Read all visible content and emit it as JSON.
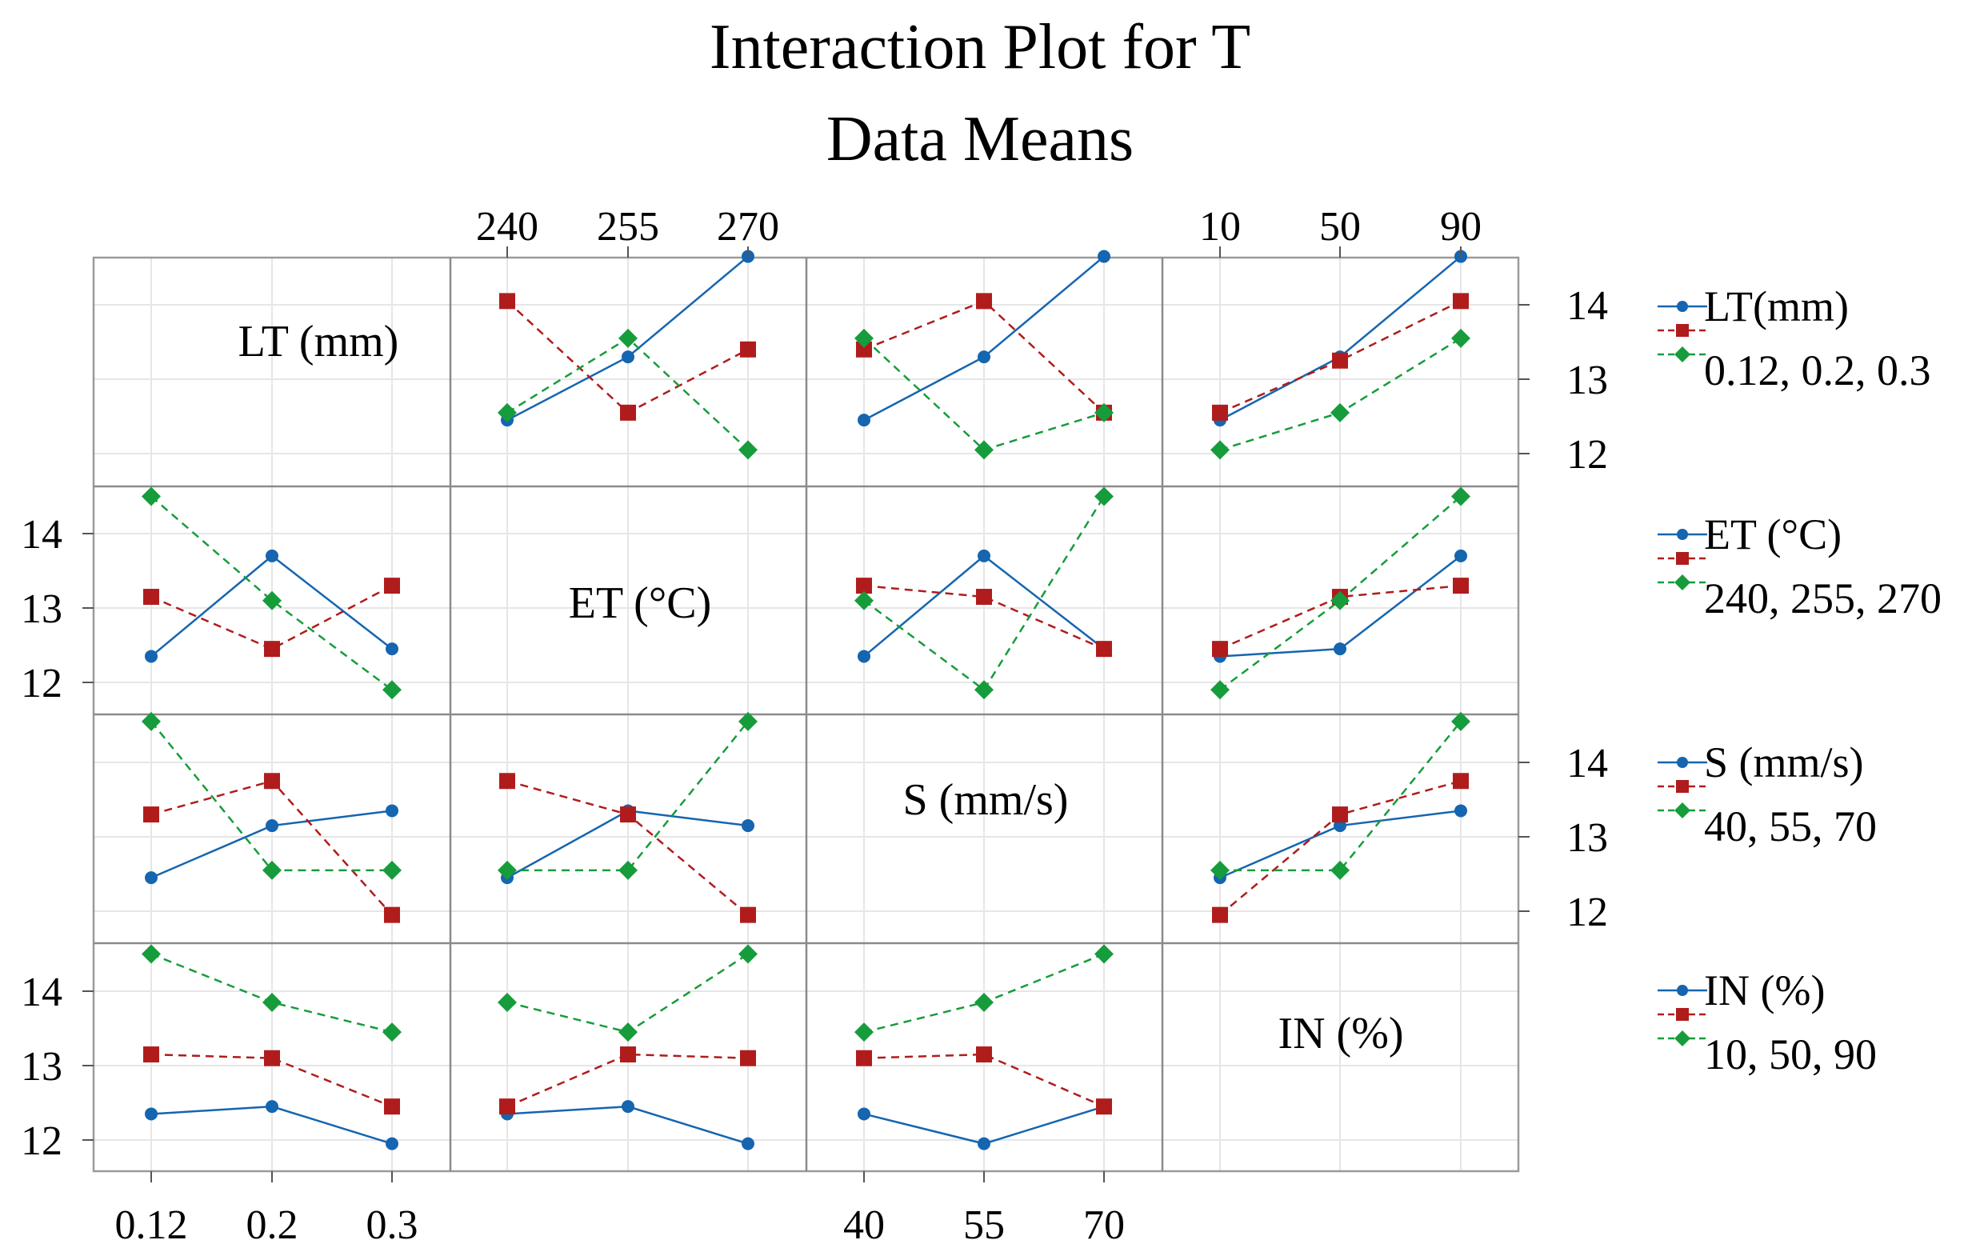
{
  "chart_data": {
    "type": "line",
    "title": "Interaction Plot for T",
    "subtitle": "Data Means",
    "factors": [
      {
        "label": "LT (mm)",
        "legend_title": "LT(mm)",
        "levels": [
          "0.12",
          "0.2",
          "0.3"
        ],
        "legend_levels": "0.12, 0.2, 0.3"
      },
      {
        "label": "ET (°C)",
        "legend_title": "ET (°C)",
        "levels": [
          "240",
          "255",
          "270"
        ],
        "legend_levels": "240, 255, 270"
      },
      {
        "label": "S (mm/s)",
        "legend_title": "S (mm/s)",
        "levels": [
          "40",
          "55",
          "70"
        ],
        "legend_levels": "40, 55, 70"
      },
      {
        "label": "IN (%)",
        "legend_title": "IN (%)",
        "levels": [
          "10",
          "50",
          "90"
        ],
        "legend_levels": "10, 50, 90"
      }
    ],
    "y_ticks": [
      "12",
      "13",
      "14"
    ],
    "ylim": [
      11.55,
      14.6
    ],
    "colors": [
      "#1565b0",
      "#b01c1c",
      "#179c3c"
    ],
    "panels": [
      {
        "row": 0,
        "col": 1,
        "series": [
          [
            12.45,
            13.3,
            14.65
          ],
          [
            14.05,
            12.55,
            13.4
          ],
          [
            12.55,
            13.55,
            12.05
          ]
        ]
      },
      {
        "row": 0,
        "col": 2,
        "series": [
          [
            12.45,
            13.3,
            14.65
          ],
          [
            13.4,
            14.05,
            12.55
          ],
          [
            13.55,
            12.05,
            12.55
          ]
        ]
      },
      {
        "row": 0,
        "col": 3,
        "series": [
          [
            12.45,
            13.3,
            14.65
          ],
          [
            12.55,
            13.25,
            14.05
          ],
          [
            12.05,
            12.55,
            13.55
          ]
        ]
      },
      {
        "row": 1,
        "col": 0,
        "series": [
          [
            12.35,
            13.7,
            12.45
          ],
          [
            13.15,
            12.45,
            13.3
          ],
          [
            14.5,
            13.1,
            11.9
          ]
        ]
      },
      {
        "row": 1,
        "col": 2,
        "series": [
          [
            12.35,
            13.7,
            12.45
          ],
          [
            13.3,
            13.15,
            12.45
          ],
          [
            13.1,
            11.9,
            14.5
          ]
        ]
      },
      {
        "row": 1,
        "col": 3,
        "series": [
          [
            12.35,
            12.45,
            13.7
          ],
          [
            12.45,
            13.15,
            13.3
          ],
          [
            11.9,
            13.1,
            14.5
          ]
        ]
      },
      {
        "row": 2,
        "col": 0,
        "series": [
          [
            12.45,
            13.15,
            13.35
          ],
          [
            13.3,
            13.75,
            11.95
          ],
          [
            14.55,
            12.55,
            12.55
          ]
        ]
      },
      {
        "row": 2,
        "col": 1,
        "series": [
          [
            12.45,
            13.35,
            13.15
          ],
          [
            13.75,
            13.3,
            11.95
          ],
          [
            12.55,
            12.55,
            14.55
          ]
        ]
      },
      {
        "row": 2,
        "col": 3,
        "series": [
          [
            12.45,
            13.15,
            13.35
          ],
          [
            11.95,
            13.3,
            13.75
          ],
          [
            12.55,
            12.55,
            14.55
          ]
        ]
      },
      {
        "row": 3,
        "col": 0,
        "series": [
          [
            12.35,
            12.45,
            11.95
          ],
          [
            13.15,
            13.1,
            12.45
          ],
          [
            14.5,
            13.85,
            13.45
          ]
        ]
      },
      {
        "row": 3,
        "col": 1,
        "series": [
          [
            12.35,
            12.45,
            11.95
          ],
          [
            12.45,
            13.15,
            13.1
          ],
          [
            13.85,
            13.45,
            14.5
          ]
        ]
      },
      {
        "row": 3,
        "col": 2,
        "series": [
          [
            12.35,
            11.95,
            12.45
          ],
          [
            13.1,
            13.15,
            12.45
          ],
          [
            13.45,
            13.85,
            14.5
          ]
        ]
      }
    ]
  }
}
